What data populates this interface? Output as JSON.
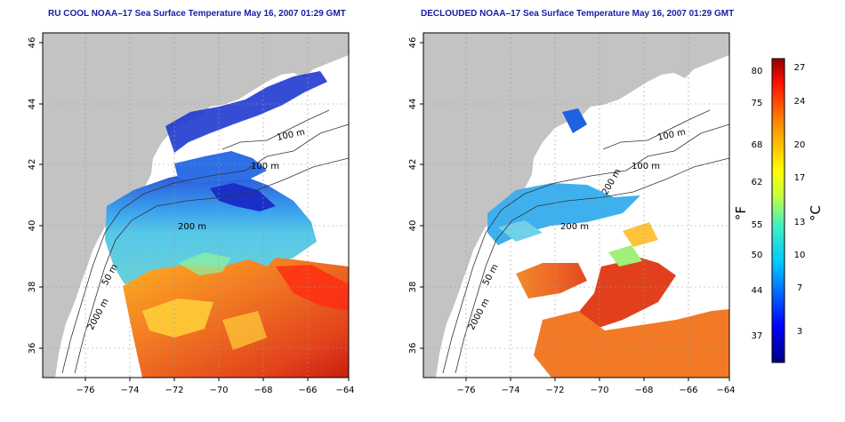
{
  "panels": [
    {
      "title": "RU COOL NOAA–17 Sea Surface Temperature May 16, 2007 01:29 GMT",
      "lat_ticks": [
        "36",
        "38",
        "40",
        "42",
        "44",
        "46"
      ],
      "lon_ticks": [
        "−76",
        "−74",
        "−72",
        "−70",
        "−68",
        "−66",
        "−64"
      ],
      "isobath_labels": [
        "100 m",
        "100 m",
        "200 m",
        "50 m",
        "2000 m"
      ]
    },
    {
      "title": "DECLOUDED NOAA–17 Sea Surface Temperature May 16, 2007 01:29 GMT",
      "lat_ticks": [
        "36",
        "38",
        "40",
        "42",
        "44",
        "46"
      ],
      "lon_ticks": [
        "−76",
        "−74",
        "−72",
        "−70",
        "−68",
        "−66",
        "−64"
      ],
      "isobath_labels": [
        "100 m",
        "100 m",
        "200 m",
        "200 m",
        "50 m",
        "2000 m"
      ]
    }
  ],
  "colorbar": {
    "fahrenheit_label": "°F",
    "celsius_label": "°C",
    "fahrenheit_ticks": [
      "80",
      "75",
      "68",
      "62",
      "55",
      "50",
      "44",
      "37"
    ],
    "celsius_ticks": [
      "27",
      "24",
      "20",
      "17",
      "13",
      "10",
      "7",
      "3"
    ]
  },
  "colors": {
    "title": "#1a1aa6",
    "land": "#c3c3c3",
    "warm": "#e0501e",
    "cool": "#3fa0ee",
    "cold": "#1a2fc8"
  }
}
